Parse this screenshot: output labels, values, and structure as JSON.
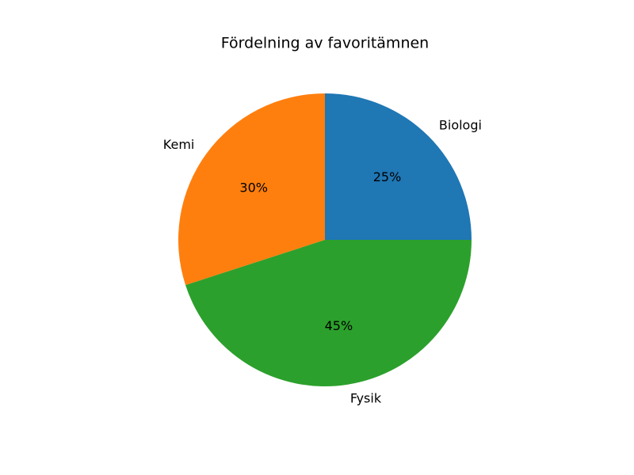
{
  "chart_data": {
    "type": "pie",
    "title": "Fördelning av favoritämnen",
    "categories": [
      "Biologi",
      "Kemi",
      "Fysik"
    ],
    "values": [
      25,
      30,
      45
    ],
    "value_labels": [
      "25%",
      "30%",
      "45%"
    ],
    "colors": [
      "#1f77b4",
      "#ff7f0e",
      "#2ca02c"
    ]
  }
}
